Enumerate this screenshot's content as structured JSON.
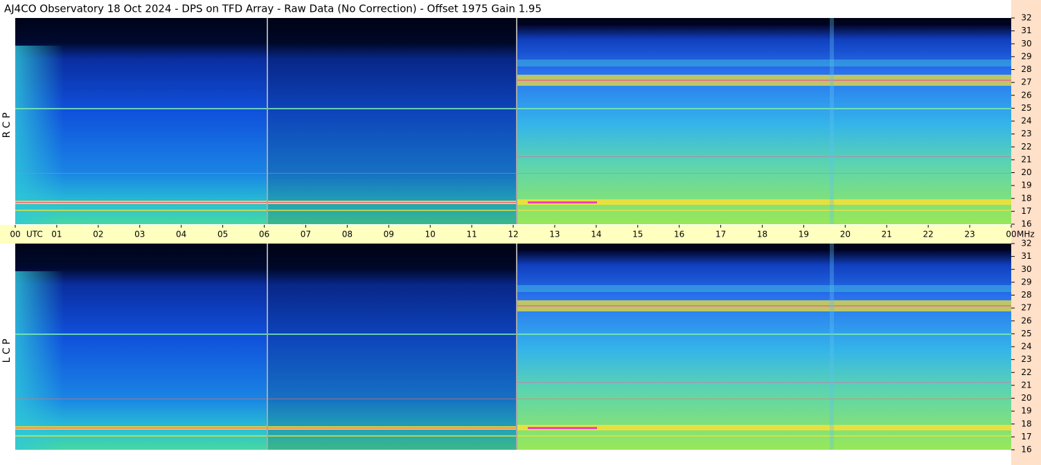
{
  "chart_data": {
    "type": "spectrogram",
    "title": "AJ4CO Observatory  18 Oct 2024  -  DPS on TFD Array  -  Raw Data (No Correction)  -  Offset 1975  Gain 1.95",
    "x_label": "UTC",
    "y_label": "MHz",
    "xlim": [
      0,
      24
    ],
    "xticks": [
      {
        "value": 0,
        "label": "00"
      },
      {
        "value": 1,
        "label": "01"
      },
      {
        "value": 2,
        "label": "02"
      },
      {
        "value": 3,
        "label": "03"
      },
      {
        "value": 4,
        "label": "04"
      },
      {
        "value": 5,
        "label": "05"
      },
      {
        "value": 6,
        "label": "06"
      },
      {
        "value": 7,
        "label": "07"
      },
      {
        "value": 8,
        "label": "08"
      },
      {
        "value": 9,
        "label": "09"
      },
      10,
      11,
      12,
      13,
      14,
      15,
      16,
      17,
      18,
      19,
      20,
      21,
      22,
      23,
      {
        "value": 24,
        "label": "00"
      }
    ],
    "panels": [
      {
        "label": "R C P",
        "ylim": [
          16,
          32
        ],
        "yticks": [
          16,
          17,
          18,
          19,
          20,
          21,
          22,
          23,
          24,
          25,
          26,
          27,
          28,
          29,
          30,
          31,
          32
        ]
      },
      {
        "label": "L C P",
        "ylim": [
          16,
          32
        ],
        "yticks": [
          16,
          17,
          18,
          19,
          20,
          21,
          22,
          23,
          24,
          25,
          26,
          27,
          28,
          29,
          30,
          31,
          32
        ]
      }
    ]
  }
}
